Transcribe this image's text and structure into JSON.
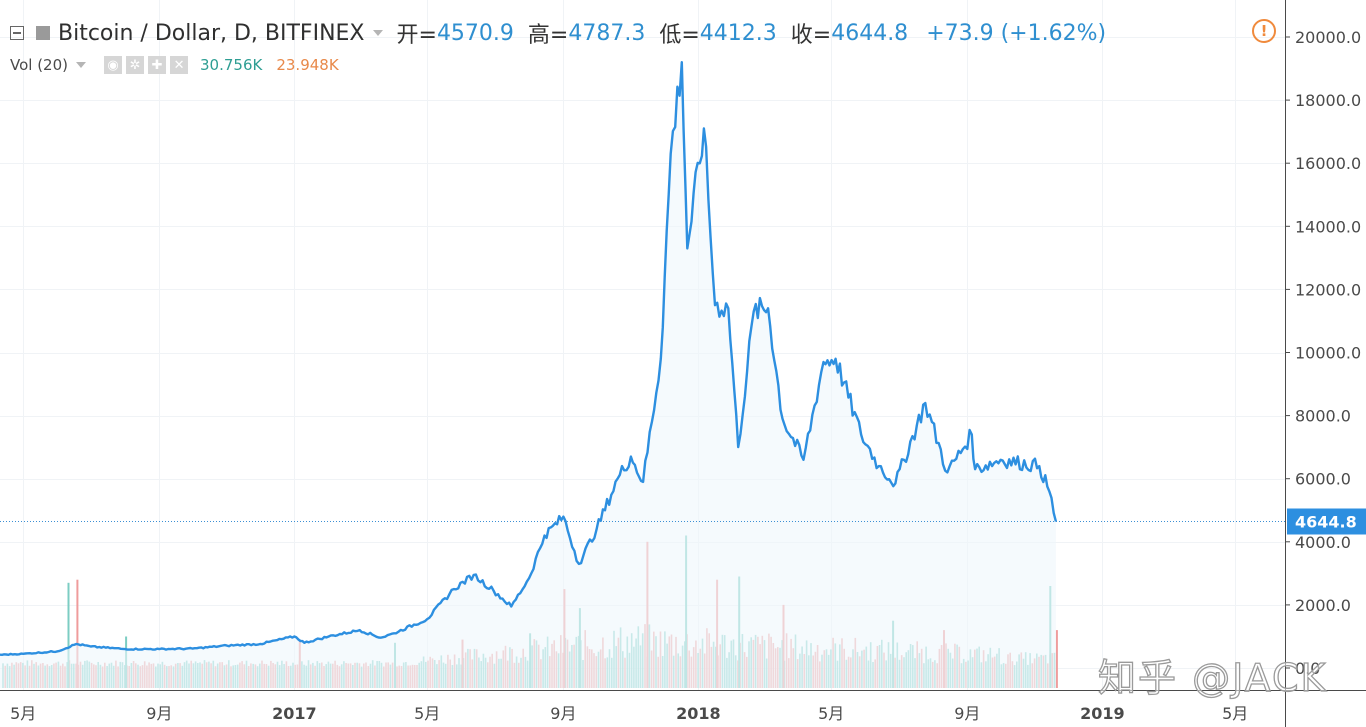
{
  "header": {
    "symbol": "Bitcoin / Dollar, D, BITFINEX",
    "open_label": "开=",
    "open_value": "4570.9",
    "high_label": "高=",
    "high_value": "4787.3",
    "low_label": "低=",
    "low_value": "4412.3",
    "close_label": "收=",
    "close_value": "4644.8",
    "change": "+73.9 (+1.62%)"
  },
  "volume_indicator": {
    "label": "Vol (20)",
    "value_1": "30.756K",
    "value_2": "23.948K",
    "value_1_color": "#2e9e93",
    "value_2_color": "#e8894a"
  },
  "watermark": "知乎 @JACK",
  "icons": [
    "collapse-icon",
    "symbol-marker-icon",
    "dropdown-caret-icon",
    "eye-icon",
    "settings-icon",
    "plus-icon",
    "close-icon",
    "alert-icon"
  ],
  "chart_data": {
    "type": "line",
    "series": [
      {
        "values": [
          {
            "x": "2016-04-10",
            "y": 420
          },
          {
            "x": "2016-05-01",
            "y": 450
          },
          {
            "x": "2016-06-01",
            "y": 530
          },
          {
            "x": "2016-06-18",
            "y": 760
          },
          {
            "x": "2016-07-01",
            "y": 680
          },
          {
            "x": "2016-08-01",
            "y": 600
          },
          {
            "x": "2016-09-01",
            "y": 600
          },
          {
            "x": "2016-10-01",
            "y": 615
          },
          {
            "x": "2016-11-01",
            "y": 710
          },
          {
            "x": "2016-12-01",
            "y": 760
          },
          {
            "x": "2017-01-01",
            "y": 1000
          },
          {
            "x": "2017-01-10",
            "y": 800
          },
          {
            "x": "2017-02-01",
            "y": 1000
          },
          {
            "x": "2017-03-01",
            "y": 1200
          },
          {
            "x": "2017-03-20",
            "y": 960
          },
          {
            "x": "2017-04-01",
            "y": 1100
          },
          {
            "x": "2017-05-01",
            "y": 1550
          },
          {
            "x": "2017-05-25",
            "y": 2500
          },
          {
            "x": "2017-06-12",
            "y": 2950
          },
          {
            "x": "2017-06-30",
            "y": 2450
          },
          {
            "x": "2017-07-16",
            "y": 1950
          },
          {
            "x": "2017-08-01",
            "y": 2850
          },
          {
            "x": "2017-08-15",
            "y": 4200
          },
          {
            "x": "2017-09-01",
            "y": 4800
          },
          {
            "x": "2017-09-15",
            "y": 3300
          },
          {
            "x": "2017-10-01",
            "y": 4400
          },
          {
            "x": "2017-10-20",
            "y": 6000
          },
          {
            "x": "2017-11-01",
            "y": 6700
          },
          {
            "x": "2017-11-12",
            "y": 5900
          },
          {
            "x": "2017-11-28",
            "y": 9800
          },
          {
            "x": "2017-12-07",
            "y": 16300
          },
          {
            "x": "2017-12-17",
            "y": 19200
          },
          {
            "x": "2017-12-22",
            "y": 13300
          },
          {
            "x": "2018-01-06",
            "y": 17100
          },
          {
            "x": "2018-01-16",
            "y": 11500
          },
          {
            "x": "2018-01-28",
            "y": 11400
          },
          {
            "x": "2018-02-06",
            "y": 7000
          },
          {
            "x": "2018-02-20",
            "y": 11300
          },
          {
            "x": "2018-03-05",
            "y": 11400
          },
          {
            "x": "2018-03-18",
            "y": 7900
          },
          {
            "x": "2018-04-06",
            "y": 6600
          },
          {
            "x": "2018-04-24",
            "y": 9700
          },
          {
            "x": "2018-05-05",
            "y": 9800
          },
          {
            "x": "2018-05-28",
            "y": 7400
          },
          {
            "x": "2018-06-13",
            "y": 6400
          },
          {
            "x": "2018-06-28",
            "y": 5850
          },
          {
            "x": "2018-07-25",
            "y": 8400
          },
          {
            "x": "2018-08-14",
            "y": 6200
          },
          {
            "x": "2018-09-05",
            "y": 7400
          },
          {
            "x": "2018-09-08",
            "y": 6300
          },
          {
            "x": "2018-10-01",
            "y": 6600
          },
          {
            "x": "2018-11-05",
            "y": 6400
          },
          {
            "x": "2018-11-14",
            "y": 5600
          },
          {
            "x": "2018-11-20",
            "y": 4644.8
          }
        ]
      }
    ],
    "volume_bars": {
      "colors": {
        "up": "#7ccdc3",
        "down": "#ef9c9c"
      },
      "note_values_in_display_scale": true,
      "values": [
        {
          "x": "2016-06-10",
          "y": 2700
        },
        {
          "x": "2016-06-18",
          "y": 2800
        },
        {
          "x": "2016-08-01",
          "y": 1000
        },
        {
          "x": "2017-01-05",
          "y": 900
        },
        {
          "x": "2017-04-01",
          "y": 800
        },
        {
          "x": "2017-06-01",
          "y": 900
        },
        {
          "x": "2017-08-01",
          "y": 1100
        },
        {
          "x": "2017-09-01",
          "y": 2500
        },
        {
          "x": "2017-09-15",
          "y": 1900
        },
        {
          "x": "2017-11-15",
          "y": 4000
        },
        {
          "x": "2017-12-20",
          "y": 4200
        },
        {
          "x": "2018-01-17",
          "y": 2800
        },
        {
          "x": "2018-02-06",
          "y": 2900
        },
        {
          "x": "2018-03-18",
          "y": 2000
        },
        {
          "x": "2018-06-25",
          "y": 1500
        },
        {
          "x": "2018-08-10",
          "y": 1200
        },
        {
          "x": "2018-11-14",
          "y": 2600
        },
        {
          "x": "2018-11-20",
          "y": 1200
        }
      ]
    },
    "last_price": 4644.8,
    "ylim": [
      0,
      20000
    ],
    "y_ticks": [
      "20000.0",
      "18000.0",
      "16000.0",
      "14000.0",
      "12000.0",
      "10000.0",
      "8000.0",
      "6000.0",
      "4000.0",
      "2000.0",
      "0.0"
    ],
    "x_ticks": [
      {
        "label": "5月",
        "bold": false
      },
      {
        "label": "9月",
        "bold": false
      },
      {
        "label": "2017",
        "bold": true
      },
      {
        "label": "5月",
        "bold": false
      },
      {
        "label": "9月",
        "bold": false
      },
      {
        "label": "2018",
        "bold": true
      },
      {
        "label": "5月",
        "bold": false
      },
      {
        "label": "9月",
        "bold": false
      },
      {
        "label": "2019",
        "bold": true
      },
      {
        "label": "5月",
        "bold": false
      }
    ],
    "line_color": "#2d8fe0",
    "area_fill": "#eef6fc",
    "grid": true,
    "legend": "top-left"
  }
}
